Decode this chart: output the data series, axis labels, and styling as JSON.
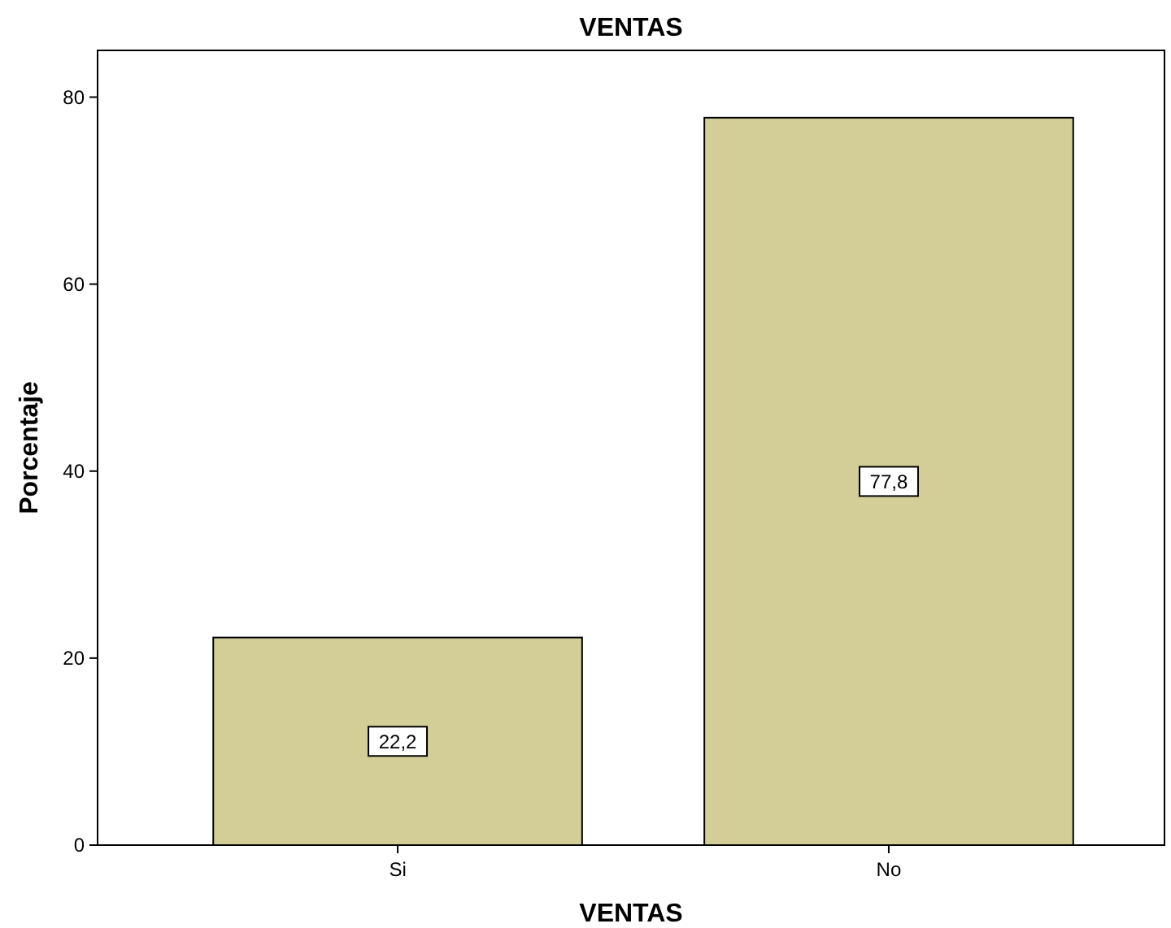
{
  "chart_data": {
    "type": "bar",
    "title": "VENTAS",
    "xlabel": "VENTAS",
    "ylabel": "Porcentaje",
    "categories": [
      "Si",
      "No"
    ],
    "values": [
      22.2,
      77.8
    ],
    "value_labels": [
      "22,2",
      "77,8"
    ],
    "color": "#d3ce97",
    "ylim": [
      0,
      85
    ],
    "yticks": [
      0,
      20,
      40,
      60,
      80
    ],
    "grid": false
  }
}
